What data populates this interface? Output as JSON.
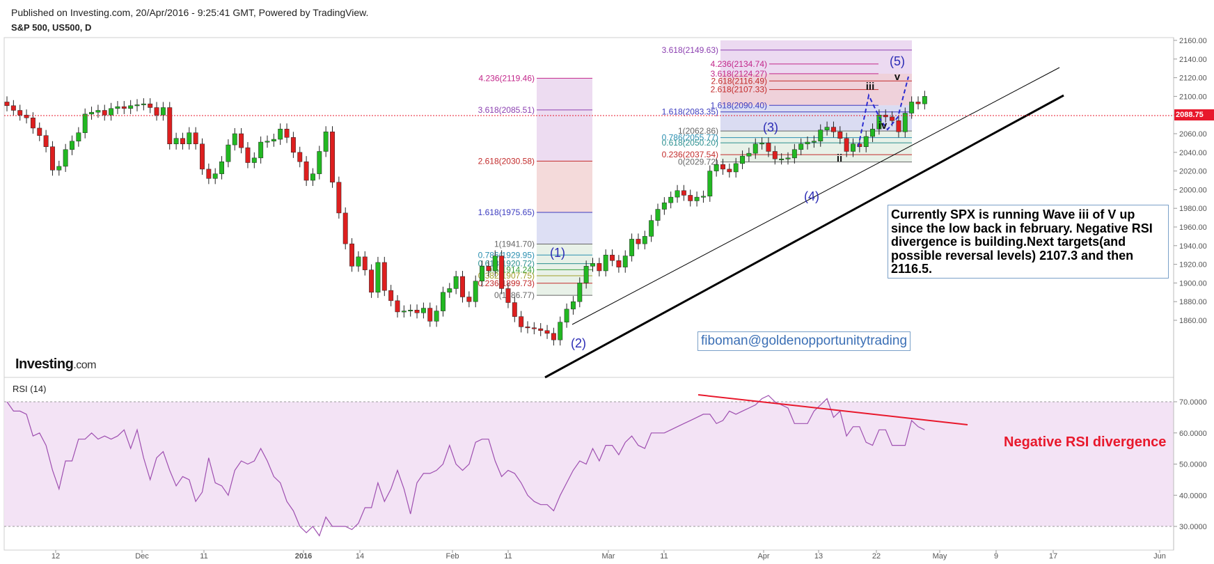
{
  "header": {
    "published": "Published on Investing.com, 20/Apr/2016 - 9:25:41 GMT, Powered by TradingView.",
    "symbol": "S&P 500, US500, D"
  },
  "logo": {
    "brand": "Investing",
    "suffix": ".com"
  },
  "comment": "Currently SPX is running Wave iii of V up since the low back in february. Negative RSI divergence is building.Next targets(and possible reversal levels) 2107.3 and then 2116.5.",
  "email": "fiboman@goldenopportunitytrading",
  "rsi_label": "RSI (14)",
  "divergence_note": "Negative RSI divergence",
  "last_price": "2088.75",
  "colors": {
    "up": "#22b822",
    "down": "#dd1f1f",
    "rsi_line": "#9e4fb0",
    "rsi_band": "#f3e3f5",
    "fib_text_blue": "#3b3bbf",
    "divergence_line": "#e8182c"
  },
  "chart_data": [
    {
      "type": "candlestick",
      "title": "S&P 500, US500, D",
      "x_tick_labels": [
        "12",
        "Dec",
        "11",
        "2016",
        "14",
        "Feb",
        "11",
        "Mar",
        "11",
        "Apr",
        "13",
        "22",
        "May",
        "9",
        "17",
        "Jun"
      ],
      "y_tick_labels": [
        "1860.00",
        "1880.00",
        "1900.00",
        "1920.00",
        "1940.00",
        "1960.00",
        "1980.00",
        "2000.00",
        "2020.00",
        "2040.00",
        "2060.00",
        "2080.00",
        "2100.00",
        "2120.00",
        "2140.00",
        "2160.00"
      ],
      "ylim": [
        1828,
        2168
      ],
      "last_price": 2088.75,
      "close": [
        2090,
        2085,
        2080,
        2077,
        2066,
        2058,
        2046,
        2021,
        2025,
        2043,
        2052,
        2061,
        2081,
        2083,
        2085,
        2080,
        2087,
        2089,
        2087,
        2090,
        2091,
        2092,
        2088,
        2080,
        2088,
        2049,
        2055,
        2049,
        2061,
        2049,
        2022,
        2012,
        2017,
        2030,
        2048,
        2060,
        2045,
        2029,
        2034,
        2051,
        2052,
        2054,
        2065,
        2056,
        2040,
        2030,
        2010,
        2017,
        2041,
        2062,
        2008,
        1975,
        1942,
        1918,
        1928,
        1914,
        1890,
        1922,
        1892,
        1881,
        1869,
        1870,
        1871,
        1868,
        1873,
        1859,
        1870,
        1890,
        1894,
        1907,
        1885,
        1880,
        1902,
        1918,
        1913,
        1929,
        1894,
        1879,
        1864,
        1853,
        1852,
        1851,
        1849,
        1846,
        1839,
        1858,
        1872,
        1880,
        1900,
        1918,
        1921,
        1913,
        1930,
        1924,
        1917,
        1929,
        1947,
        1942,
        1950,
        1967,
        1979,
        1986,
        1992,
        1999,
        1994,
        1988,
        1992,
        1993,
        2020,
        2027,
        2022,
        2019,
        2028,
        2036,
        2039,
        2049,
        2050,
        2041,
        2033,
        2033,
        2034,
        2043,
        2049,
        2051,
        2052,
        2064,
        2067,
        2062,
        2055,
        2041,
        2049,
        2046,
        2057,
        2065,
        2080,
        2078,
        2074,
        2062,
        2082,
        2094,
        2092,
        2100
      ],
      "fib_levels": [
        {
          "label": "4.236(2119.46)",
          "value": 2119.46
        },
        {
          "label": "3.618(2085.51)",
          "value": 2085.51
        },
        {
          "label": "2.618(2030.58)",
          "value": 2030.58
        },
        {
          "label": "1.618(1975.65)",
          "value": 1975.65
        },
        {
          "label": "1(1941.70)",
          "value": 1941.7
        },
        {
          "label": "0.786(1929.95)",
          "value": 1929.95
        },
        {
          "label": "0.618(1920.72)",
          "value": 1920.72
        },
        {
          "label": "0.5(1914.24)",
          "value": 1914.24
        },
        {
          "label": "0.382(1907.75)",
          "value": 1907.75
        },
        {
          "label": "0.236(1899.73)",
          "value": 1899.73
        },
        {
          "label": "0(1886.77)",
          "value": 1886.77
        },
        {
          "label": "3.618(2149.63)",
          "value": 2149.63
        },
        {
          "label": "4.236(2134.74)",
          "value": 2134.74
        },
        {
          "label": "3.618(2124.27)",
          "value": 2124.27
        },
        {
          "label": "2.618(2116.49)",
          "value": 2116.49
        },
        {
          "label": "2.618(2107.33)",
          "value": 2107.33
        },
        {
          "label": "1.618(2090.40)",
          "value": 2090.4
        },
        {
          "label": "1.618(2083.35)",
          "value": 2083.35
        },
        {
          "label": "1(2062.86)",
          "value": 2062.86
        },
        {
          "label": "0.786(2055.77)",
          "value": 2055.77
        },
        {
          "label": "0.618(2050.20)",
          "value": 2050.2
        },
        {
          "label": "0.236(2037.54)",
          "value": 2037.54
        },
        {
          "label": "0(2029.72)",
          "value": 2029.72
        }
      ],
      "wave_labels": [
        "(1)",
        "(2)",
        "(3)",
        "(4)",
        "(5)",
        "iii",
        "ii",
        "iv",
        "v"
      ]
    },
    {
      "type": "line",
      "title": "RSI (14)",
      "y_tick_labels": [
        "30.0000",
        "40.0000",
        "50.0000",
        "60.0000",
        "70.0000"
      ],
      "ylim": [
        26,
        75
      ],
      "bands": [
        30,
        70
      ],
      "values": [
        70,
        67,
        67,
        66,
        59,
        60,
        56,
        48,
        42,
        51,
        51,
        58,
        58,
        60,
        58,
        59,
        58,
        59,
        61,
        55,
        61,
        52,
        45,
        52,
        54,
        48,
        43,
        46,
        45,
        38,
        41,
        52,
        44,
        43,
        40,
        48,
        51,
        50,
        51,
        55,
        51,
        46,
        44,
        38,
        35,
        30,
        28,
        30,
        27,
        33,
        30,
        30,
        30,
        29,
        31,
        36,
        36,
        44,
        38,
        42,
        48,
        42,
        34,
        44,
        47,
        47,
        48,
        50,
        56,
        50,
        48,
        50,
        57,
        58,
        58,
        51,
        46,
        48,
        47,
        44,
        40,
        38,
        37,
        37,
        35,
        40,
        44,
        48,
        51,
        50,
        55,
        51,
        56,
        56,
        53,
        57,
        59,
        56,
        55,
        60,
        60,
        60,
        61,
        62,
        63,
        64,
        65,
        66,
        66,
        63,
        64,
        67,
        66,
        67,
        68,
        69,
        71,
        72,
        70,
        69,
        68,
        63,
        63,
        63,
        67,
        69,
        71,
        65,
        67,
        59,
        62,
        62,
        57,
        56,
        61,
        61,
        56,
        56,
        56,
        64,
        62,
        61
      ]
    }
  ]
}
